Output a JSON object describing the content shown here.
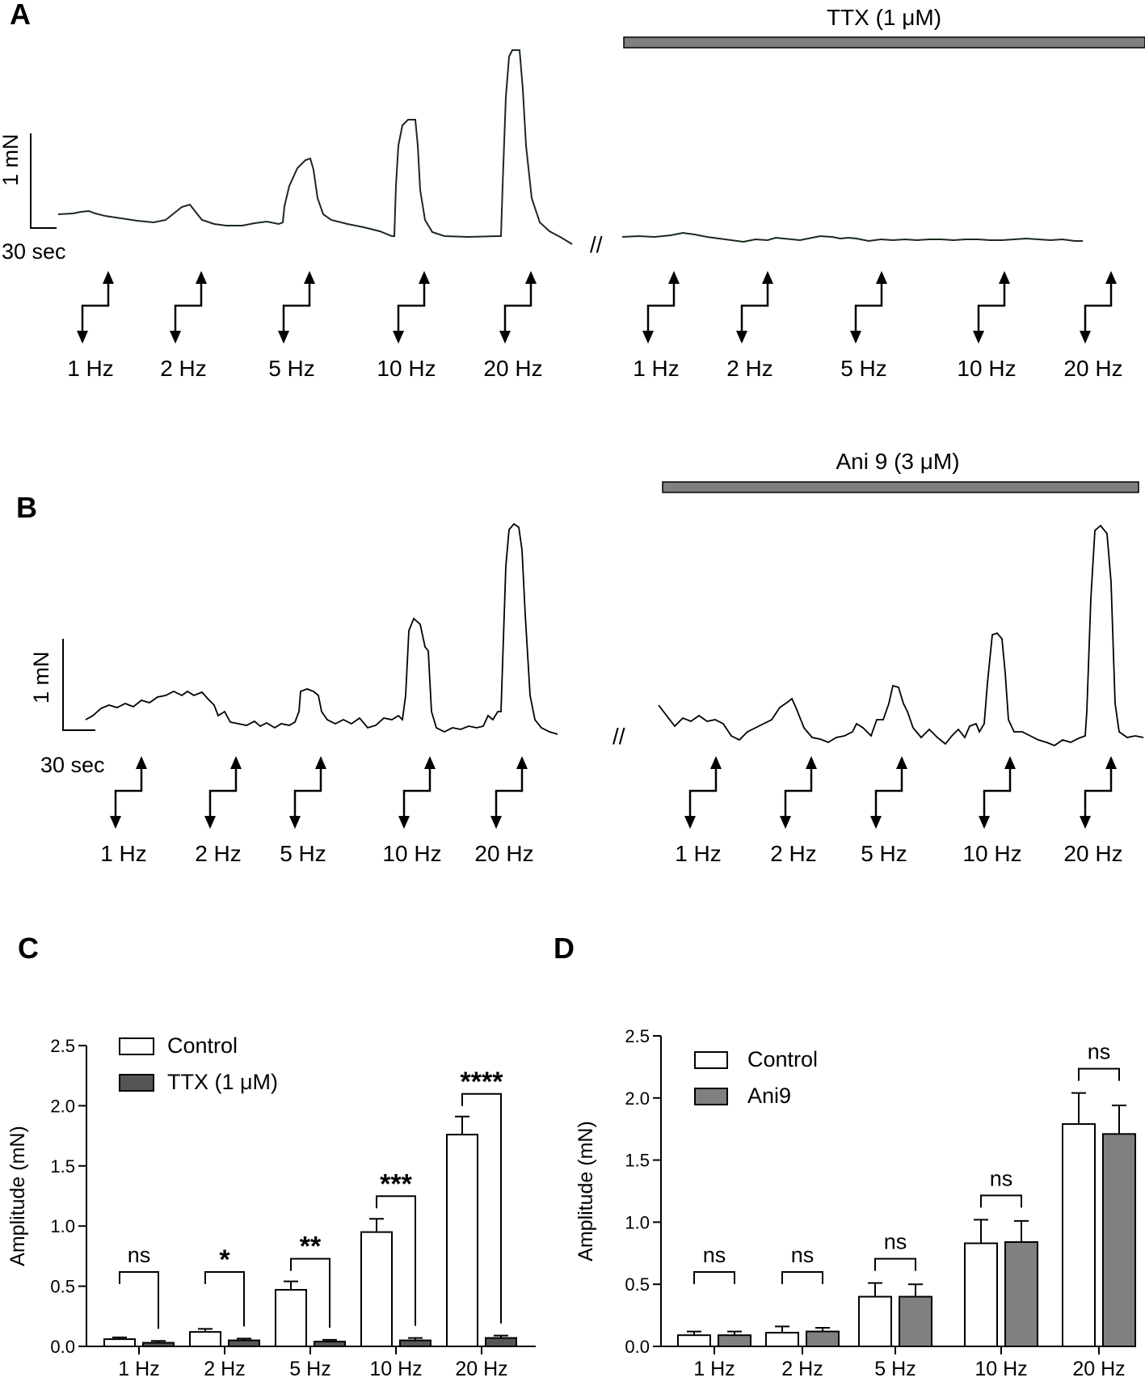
{
  "figure": {
    "panels": [
      {
        "label": "A"
      },
      {
        "label": "B"
      },
      {
        "label": "C"
      },
      {
        "label": "D"
      }
    ],
    "break_mark": "//"
  },
  "panel_a": {
    "scale_y": "1 mN",
    "scale_x": "30 sec",
    "drug_label": "TTX (1 μM)",
    "control_stims": [
      "1 Hz",
      "2 Hz",
      "5 Hz",
      "10 Hz",
      "20 Hz"
    ],
    "drug_stims": [
      "1 Hz",
      "2 Hz",
      "5 Hz",
      "10 Hz",
      "20 Hz"
    ]
  },
  "panel_b": {
    "scale_y": "1 mN",
    "scale_x": "30 sec",
    "drug_label": "Ani 9 (3 μM)",
    "control_stims": [
      "1 Hz",
      "2 Hz",
      "5 Hz",
      "10 Hz",
      "20 Hz"
    ],
    "drug_stims": [
      "1 Hz",
      "2 Hz",
      "5 Hz",
      "10 Hz",
      "20 Hz"
    ]
  },
  "colors": {
    "control_fill": "#ffffff",
    "ttx_fill": "#555555",
    "ani9_fill": "#808080",
    "drug_bar": "#808080",
    "trace": "#000000"
  },
  "chart_data": [
    {
      "id": "C",
      "type": "bar",
      "ylabel": "Amplitude (mN)",
      "ylim": [
        0,
        2.5
      ],
      "yticks": [
        "0.0",
        "0.5",
        "1.0",
        "1.5",
        "2.0",
        "2.5"
      ],
      "categories": [
        "1 Hz",
        "2 Hz",
        "5 Hz",
        "10 Hz",
        "20 Hz"
      ],
      "legend_position": "top-left",
      "series": [
        {
          "name": "Control",
          "values": [
            0.06,
            0.12,
            0.47,
            0.95,
            1.76
          ],
          "errors": [
            0.015,
            0.025,
            0.07,
            0.11,
            0.15
          ]
        },
        {
          "name": "TTX (1 μM)",
          "values": [
            0.03,
            0.05,
            0.04,
            0.05,
            0.07
          ],
          "errors": [
            0.015,
            0.015,
            0.015,
            0.02,
            0.02
          ]
        }
      ],
      "significance": [
        "ns",
        "*",
        "**",
        "***",
        "****"
      ]
    },
    {
      "id": "D",
      "type": "bar",
      "ylabel": "Amplitude (mN)",
      "ylim": [
        0,
        2.5
      ],
      "yticks": [
        "0.0",
        "0.5",
        "1.0",
        "1.5",
        "2.0",
        "2.5"
      ],
      "categories": [
        "1 Hz",
        "2 Hz",
        "5 Hz",
        "10 Hz",
        "20 Hz"
      ],
      "legend_position": "top-left",
      "series": [
        {
          "name": "Control",
          "values": [
            0.09,
            0.11,
            0.4,
            0.83,
            1.79
          ],
          "errors": [
            0.03,
            0.05,
            0.11,
            0.19,
            0.25
          ]
        },
        {
          "name": "Ani9",
          "values": [
            0.09,
            0.12,
            0.4,
            0.84,
            1.71
          ],
          "errors": [
            0.03,
            0.03,
            0.1,
            0.17,
            0.23
          ]
        }
      ],
      "significance": [
        "ns",
        "ns",
        "ns",
        "ns",
        "ns"
      ]
    }
  ]
}
